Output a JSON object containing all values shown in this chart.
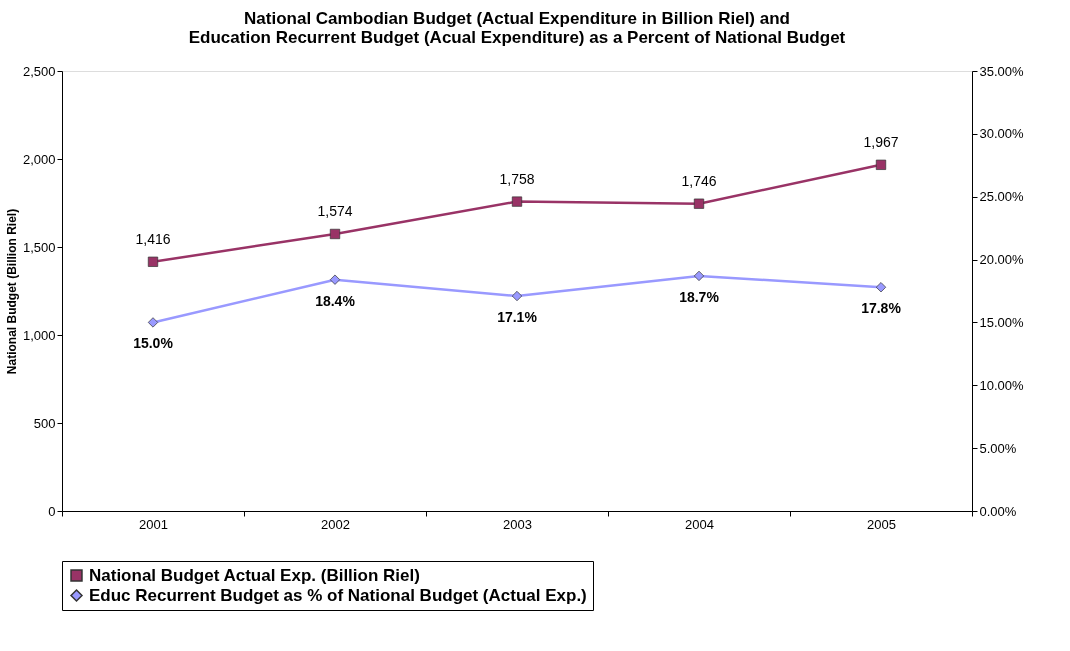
{
  "chart_data": {
    "type": "line",
    "title": [
      "National Cambodian Budget (Actual Expenditure in Billion Riel) and",
      "Education Recurrent Budget (Acual Expenditure) as a Percent of National Budget"
    ],
    "ylabel": "National Budget (Billion Riel)",
    "categories": [
      "2001",
      "2002",
      "2003",
      "2004",
      "2005"
    ],
    "series": [
      {
        "name": "National Budget Actual Exp. (Billion Riel)",
        "color": "#993366",
        "marker": "square",
        "values": [
          1416,
          1574,
          1758,
          1746,
          1967
        ],
        "value_labels": [
          "1,416",
          "1,574",
          "1,758",
          "1,746",
          "1,967"
        ]
      },
      {
        "name": "Educ Recurrent Budget as % of National Budget (Actual Exp.)",
        "color": "#9999ff",
        "marker": "diamond",
        "axis": "y2",
        "values": [
          15.0,
          18.4,
          17.1,
          18.7,
          17.8
        ],
        "value_labels": [
          "15.0%",
          "18.4%",
          "17.1%",
          "18.7%",
          "17.8%"
        ]
      }
    ],
    "ylim": [
      0,
      2500
    ],
    "yticks": [
      {
        "value": 0,
        "label": "0"
      },
      {
        "value": 500,
        "label": "500"
      },
      {
        "value": 1000,
        "label": "1,000"
      },
      {
        "value": 1500,
        "label": "1,500"
      },
      {
        "value": 2000,
        "label": "2,000"
      },
      {
        "value": 2500,
        "label": "2,500"
      }
    ],
    "y2lim": [
      0,
      35
    ],
    "y2ticks": [
      {
        "value": 0,
        "label": "0.00%"
      },
      {
        "value": 5,
        "label": "5.00%"
      },
      {
        "value": 10,
        "label": "10.00%"
      },
      {
        "value": 15,
        "label": "15.00%"
      },
      {
        "value": 20,
        "label": "20.00%"
      },
      {
        "value": 25,
        "label": "25.00%"
      },
      {
        "value": 30,
        "label": "30.00%"
      },
      {
        "value": 35,
        "label": "35.00%"
      }
    ],
    "grid": false,
    "legend": "bottom",
    "line_style": "solid"
  }
}
